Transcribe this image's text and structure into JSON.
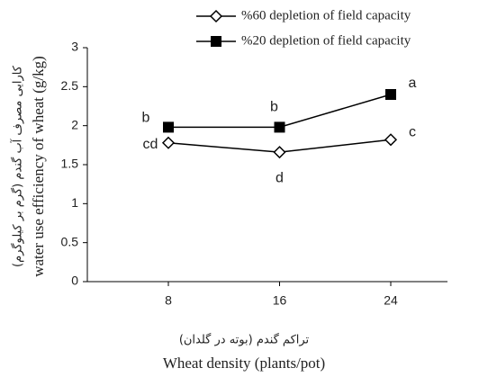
{
  "chart_data": {
    "type": "line",
    "x_label": "Wheat density (plants/pot)",
    "x_label_fa": "تراکم گندم (بوته در گلدان)",
    "y_label": "water use efficiency of wheat (g/kg)",
    "y_label_fa": "کارایی مصرف آب گندم (گرم بر کیلوگرم)",
    "categories": [
      "8",
      "16",
      "24"
    ],
    "series": [
      {
        "name": "%60 depletion of field capacity",
        "color": "#000000",
        "marker": "diamond-open",
        "values": [
          1.78,
          1.66,
          1.82
        ],
        "letters": [
          "cd",
          "d",
          "c"
        ]
      },
      {
        "name": "%20 depletion of field capacity",
        "color": "#000000",
        "marker": "square-filled",
        "values": [
          1.98,
          1.98,
          2.4
        ],
        "letters": [
          "b",
          "b",
          "a"
        ]
      }
    ],
    "ylim": [
      0,
      3
    ],
    "yticks": [
      0,
      0.5,
      1,
      1.5,
      2,
      2.5,
      3
    ],
    "grid": false,
    "legend": "top-right"
  }
}
